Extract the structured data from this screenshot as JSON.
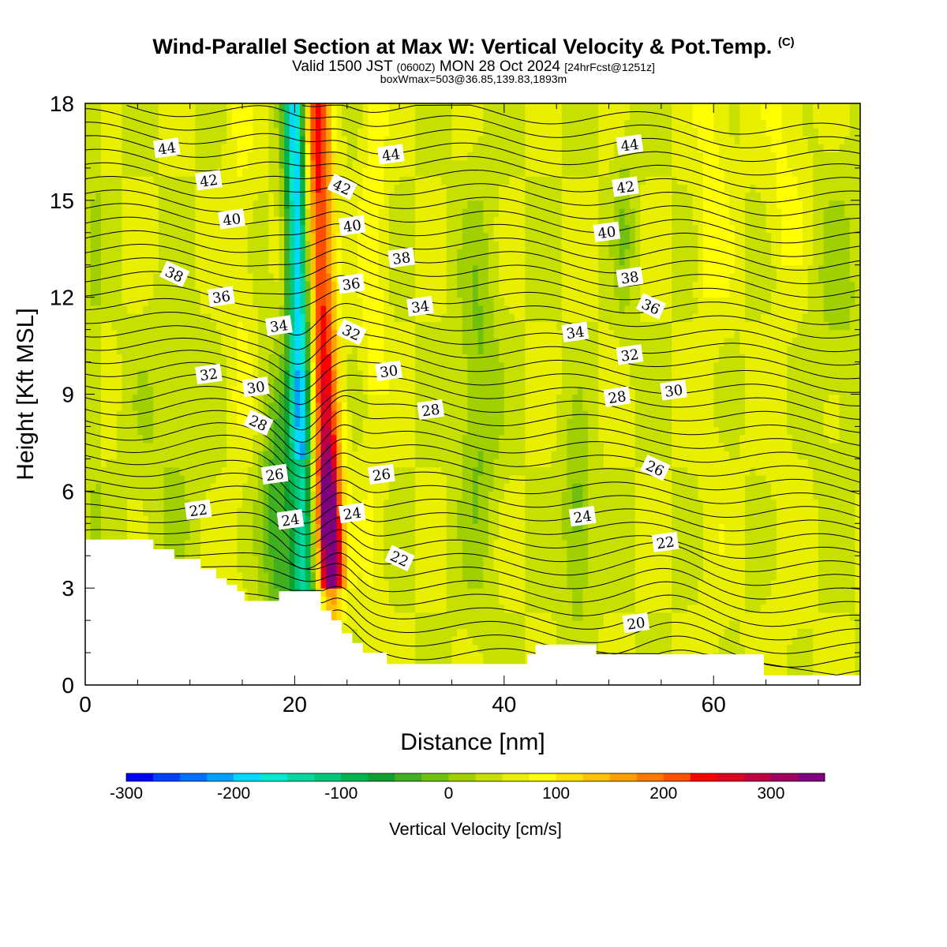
{
  "header": {
    "title": "Wind-Parallel Section at Max W: Vertical Velocity & Pot.Temp.",
    "title_mark": "(C)",
    "valid_prefix": "Valid 1500 JST",
    "valid_utc": "(0600Z)",
    "valid_date": "MON 28 Oct 2024",
    "forecast": "[24hrFcst@1251z]",
    "boxmax": "boxWmax=503@36.85,139.83,1893m"
  },
  "chart_data": {
    "type": "heatmap",
    "xlabel": "Distance [nm]",
    "ylabel": "Height [Kft MSL]",
    "xlim": [
      0,
      74
    ],
    "ylim": [
      0,
      18
    ],
    "x_ticks": [
      0,
      20,
      40,
      60
    ],
    "y_ticks": [
      0,
      3,
      6,
      9,
      12,
      15,
      18
    ],
    "colorbar": {
      "label": "Vertical Velocity [cm/s]",
      "range": [
        -300,
        350
      ],
      "step": 25,
      "tick_labels": [
        "-300",
        "-200",
        "-100",
        "0",
        "100",
        "200",
        "300"
      ],
      "colors": [
        "#0000ff",
        "#0040ff",
        "#0070ff",
        "#00a0ff",
        "#00d8ff",
        "#00e8d0",
        "#00d8a0",
        "#00c878",
        "#00b450",
        "#10a030",
        "#40b020",
        "#70c010",
        "#a0d000",
        "#c8e000",
        "#e8f000",
        "#ffff00",
        "#ffe000",
        "#ffc000",
        "#ffa000",
        "#ff7800",
        "#ff5000",
        "#ff0000",
        "#e00020",
        "#c00040",
        "#a00060",
        "#800080"
      ]
    },
    "updraft_core_cm_s": 503,
    "theta_contour_labels": [
      {
        "label": "44",
        "x": 7.8,
        "y": 16.6
      },
      {
        "label": "42",
        "x": 11.8,
        "y": 15.6
      },
      {
        "label": "40",
        "x": 14.0,
        "y": 14.4
      },
      {
        "label": "38",
        "x": 8.5,
        "y": 12.7
      },
      {
        "label": "36",
        "x": 13.0,
        "y": 12.0
      },
      {
        "label": "34",
        "x": 18.5,
        "y": 11.1
      },
      {
        "label": "32",
        "x": 11.8,
        "y": 9.6
      },
      {
        "label": "30",
        "x": 16.3,
        "y": 9.2
      },
      {
        "label": "28",
        "x": 16.5,
        "y": 8.1
      },
      {
        "label": "26",
        "x": 18.1,
        "y": 6.5
      },
      {
        "label": "24",
        "x": 19.6,
        "y": 5.1
      },
      {
        "label": "22",
        "x": 10.8,
        "y": 5.4
      },
      {
        "label": "44",
        "x": 29.2,
        "y": 16.4
      },
      {
        "label": "42",
        "x": 24.5,
        "y": 15.4
      },
      {
        "label": "40",
        "x": 25.5,
        "y": 14.2
      },
      {
        "label": "38",
        "x": 30.2,
        "y": 13.2
      },
      {
        "label": "36",
        "x": 25.4,
        "y": 12.4
      },
      {
        "label": "34",
        "x": 32.0,
        "y": 11.7
      },
      {
        "label": "32",
        "x": 25.4,
        "y": 10.9
      },
      {
        "label": "30",
        "x": 29.0,
        "y": 9.7
      },
      {
        "label": "28",
        "x": 33.0,
        "y": 8.5
      },
      {
        "label": "26",
        "x": 28.3,
        "y": 6.5
      },
      {
        "label": "24",
        "x": 25.5,
        "y": 5.3
      },
      {
        "label": "22",
        "x": 30.0,
        "y": 3.9
      },
      {
        "label": "44",
        "x": 52.0,
        "y": 16.7
      },
      {
        "label": "42",
        "x": 51.6,
        "y": 15.4
      },
      {
        "label": "40",
        "x": 49.8,
        "y": 14.0
      },
      {
        "label": "38",
        "x": 52.0,
        "y": 12.6
      },
      {
        "label": "36",
        "x": 54.0,
        "y": 11.7
      },
      {
        "label": "34",
        "x": 46.8,
        "y": 10.9
      },
      {
        "label": "32",
        "x": 52.0,
        "y": 10.2
      },
      {
        "label": "30",
        "x": 56.2,
        "y": 9.1
      },
      {
        "label": "28",
        "x": 50.8,
        "y": 8.9
      },
      {
        "label": "26",
        "x": 54.4,
        "y": 6.7
      },
      {
        "label": "24",
        "x": 47.5,
        "y": 5.2
      },
      {
        "label": "22",
        "x": 55.4,
        "y": 4.4
      },
      {
        "label": "20",
        "x": 52.6,
        "y": 1.9
      }
    ],
    "terrain": [
      [
        0,
        4.5
      ],
      [
        6.5,
        4.5
      ],
      [
        6.5,
        4.2
      ],
      [
        8.5,
        4.2
      ],
      [
        8.5,
        3.9
      ],
      [
        11,
        3.9
      ],
      [
        11,
        3.6
      ],
      [
        12.5,
        3.6
      ],
      [
        12.5,
        3.3
      ],
      [
        13.5,
        3.3
      ],
      [
        13.5,
        3.1
      ],
      [
        14.5,
        3.1
      ],
      [
        14.5,
        2.9
      ],
      [
        15.2,
        2.9
      ],
      [
        15.2,
        2.6
      ],
      [
        18.5,
        2.6
      ],
      [
        18.5,
        2.9
      ],
      [
        22.5,
        2.9
      ],
      [
        22.5,
        2.3
      ],
      [
        23.5,
        2.3
      ],
      [
        23.5,
        2.0
      ],
      [
        24.5,
        2.0
      ],
      [
        24.5,
        1.6
      ],
      [
        25.5,
        1.6
      ],
      [
        25.5,
        1.3
      ],
      [
        26.5,
        1.3
      ],
      [
        26.5,
        1.0
      ],
      [
        28.8,
        1.0
      ],
      [
        28.8,
        0.65
      ],
      [
        42.2,
        0.65
      ],
      [
        42.2,
        0.95
      ],
      [
        43,
        0.95
      ],
      [
        43,
        1.25
      ],
      [
        48.8,
        1.25
      ],
      [
        48.8,
        0.95
      ],
      [
        55,
        0.95
      ],
      [
        64.8,
        0.95
      ],
      [
        64.8,
        0.3
      ],
      [
        74,
        0.3
      ]
    ]
  }
}
